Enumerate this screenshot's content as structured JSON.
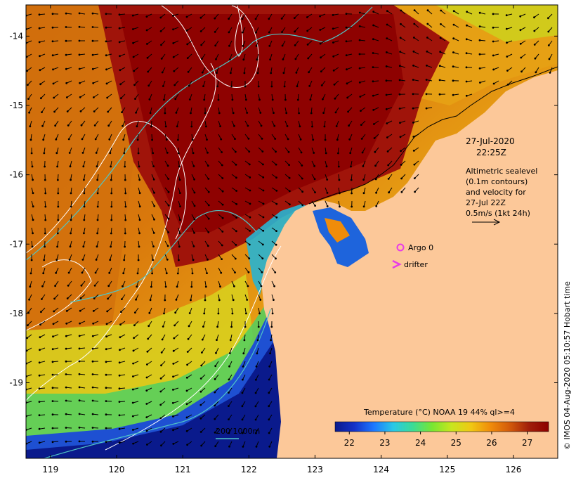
{
  "map": {
    "lon_range": [
      118.63,
      126.67
    ],
    "lat_range": [
      -20.09,
      -13.55
    ],
    "lon_ticks": [
      119,
      120,
      121,
      122,
      123,
      124,
      125,
      126
    ],
    "lat_ticks": [
      -14,
      -15,
      -16,
      -17,
      -18,
      -19
    ],
    "colors": {
      "land": "#fcc899",
      "frame": "#000000",
      "contour": "#ffffff",
      "isobath": "#4fc6c6",
      "argo": "#e83ce8",
      "drifter": "#e83ce8"
    }
  },
  "annotations": {
    "date": "27-Jul-2020",
    "time": "22:25Z",
    "line1": "Altimetric sealevel",
    "line2": "(0.1m contours)",
    "line3": "and velocity for",
    "line4": "27-Jul 22Z",
    "line5": "0.5m/s (1kt 24h)",
    "argo_label": "Argo 0",
    "drifter_label": "drifter",
    "bathy_label": "200  1000m",
    "credit": "© IMOS 04-Aug-2020 05:10:57 Hobart time"
  },
  "colorbar": {
    "title": "Temperature (°C) NOAA 19 44% ql>=4",
    "min": 21.6,
    "max": 27.6,
    "ticks": [
      "22",
      "23",
      "24",
      "25",
      "26",
      "27"
    ],
    "tick_values": [
      22,
      23,
      24,
      25,
      26,
      27
    ],
    "stops": [
      "#0a1a8c",
      "#1432c8",
      "#1e78ff",
      "#28c8e6",
      "#3cdc96",
      "#78e632",
      "#c8e61e",
      "#f0c814",
      "#f08c0a",
      "#d25a0a",
      "#a01e0a",
      "#8c0000"
    ]
  }
}
